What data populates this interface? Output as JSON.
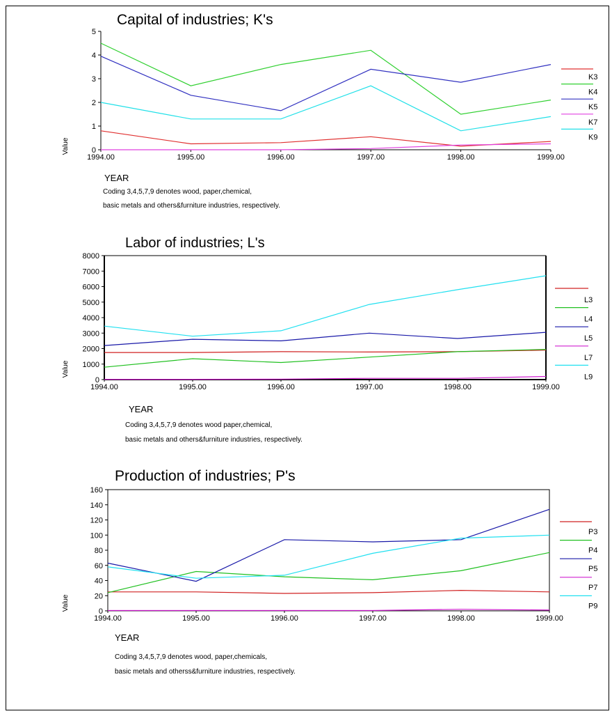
{
  "charts": [
    {
      "type": "line",
      "title": "Capital of industries; K's",
      "xlabel": "YEAR",
      "ylabel": "Value",
      "x": [
        "1994.00",
        "1995.00",
        "1996.00",
        "1997.00",
        "1998.00",
        "1999.00"
      ],
      "yticks": [
        "0",
        "1",
        "2",
        "3",
        "4",
        "5"
      ],
      "ylim": [
        0,
        5
      ],
      "legend_labels": [
        "K3",
        "K4",
        "K5",
        "K7",
        "K9"
      ],
      "note_lines": [
        "Coding 3,4,5,7,9 denotes wood, paper,chemical,",
        "basic metals and others&furniture industries, respectively."
      ],
      "series": [
        {
          "color": "#e03030",
          "values": [
            0.8,
            0.25,
            0.3,
            0.55,
            0.15,
            0.35
          ]
        },
        {
          "color": "#30d030",
          "values": [
            4.5,
            2.7,
            3.6,
            4.2,
            1.5,
            2.1
          ]
        },
        {
          "color": "#3030c0",
          "values": [
            3.95,
            2.3,
            1.65,
            3.4,
            2.85,
            3.6
          ]
        },
        {
          "color": "#e040e0",
          "values": [
            0.0,
            0.0,
            0.0,
            0.05,
            0.2,
            0.25
          ]
        },
        {
          "color": "#20e0e8",
          "values": [
            2.0,
            1.3,
            1.3,
            2.7,
            0.8,
            1.4
          ]
        }
      ]
    },
    {
      "type": "line",
      "title": "Labor of industries; L's",
      "xlabel": "YEAR",
      "ylabel": "Value",
      "x": [
        "1994.00",
        "1995.00",
        "1996.00",
        "1997.00",
        "1998.00",
        "1999.00"
      ],
      "yticks": [
        "0",
        "1000",
        "2000",
        "3000",
        "4000",
        "5000",
        "6000",
        "7000",
        "8000"
      ],
      "ylim": [
        0,
        8000
      ],
      "legend_labels": [
        "L3",
        "L4",
        "L5",
        "L7",
        "L9"
      ],
      "note_lines": [
        "Coding 3,4,5,7,9 denotes  wood paper,chemical,",
        "basic metals and others&furniture industries, respectively."
      ],
      "series": [
        {
          "color": "#d02020",
          "values": [
            1750,
            1750,
            1800,
            1780,
            1800,
            1900
          ]
        },
        {
          "color": "#20c020",
          "values": [
            800,
            1350,
            1100,
            1450,
            1800,
            1950
          ]
        },
        {
          "color": "#1818a8",
          "values": [
            2200,
            2600,
            2500,
            3000,
            2650,
            3050
          ]
        },
        {
          "color": "#d020d0",
          "values": [
            20,
            20,
            30,
            80,
            80,
            200
          ]
        },
        {
          "color": "#20e0f0",
          "values": [
            3450,
            2800,
            3150,
            4850,
            5800,
            6700
          ]
        }
      ]
    },
    {
      "type": "line",
      "title": "Production of industries; P's",
      "xlabel": "YEAR",
      "ylabel": "Value",
      "x": [
        "1994.00",
        "1995.00",
        "1996.00",
        "1997.00",
        "1998.00",
        "1999.00"
      ],
      "yticks": [
        "0",
        "20",
        "40",
        "60",
        "80",
        "100",
        "120",
        "140",
        "160"
      ],
      "ylim": [
        0,
        160
      ],
      "legend_labels": [
        "P3",
        "P4",
        "P5",
        "P7",
        "P9"
      ],
      "note_lines": [
        "Coding 3,4,5,7,9 denotes wood, paper,chemicals,",
        "basic metals and otherss&furniture industries, respectively."
      ],
      "series": [
        {
          "color": "#d02020",
          "values": [
            25,
            25,
            23,
            24,
            27,
            25
          ]
        },
        {
          "color": "#20c020",
          "values": [
            24,
            52,
            45,
            41,
            53,
            77
          ]
        },
        {
          "color": "#1818a8",
          "values": [
            63,
            39,
            94,
            91,
            94,
            134
          ]
        },
        {
          "color": "#d020d0",
          "values": [
            0.5,
            0.5,
            0.5,
            0.5,
            2,
            1
          ]
        },
        {
          "color": "#20e0f0",
          "values": [
            58,
            43,
            47,
            76,
            96,
            100
          ]
        }
      ]
    }
  ]
}
